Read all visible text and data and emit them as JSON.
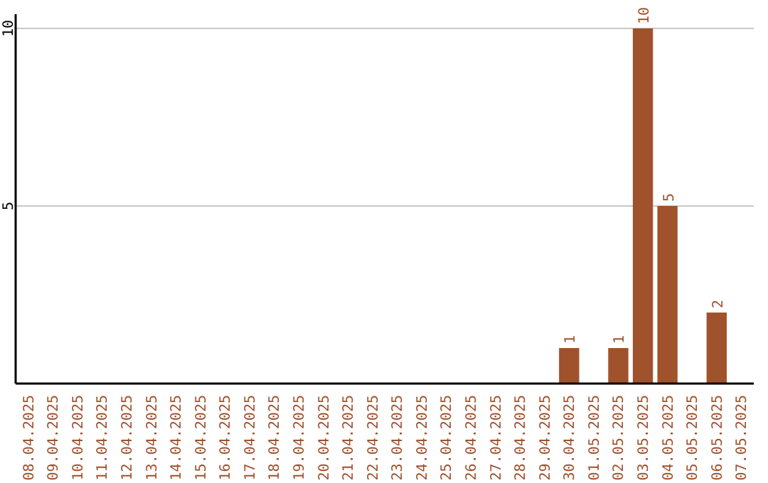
{
  "chart_data": {
    "type": "bar",
    "categories": [
      "08.04.2025",
      "09.04.2025",
      "10.04.2025",
      "11.04.2025",
      "12.04.2025",
      "13.04.2025",
      "14.04.2025",
      "15.04.2025",
      "16.04.2025",
      "17.04.2025",
      "18.04.2025",
      "19.04.2025",
      "20.04.2025",
      "21.04.2025",
      "22.04.2025",
      "23.04.2025",
      "24.04.2025",
      "25.04.2025",
      "26.04.2025",
      "27.04.2025",
      "28.04.2025",
      "29.04.2025",
      "30.04.2025",
      "01.05.2025",
      "02.05.2025",
      "03.05.2025",
      "04.05.2025",
      "05.05.2025",
      "06.05.2025",
      "07.05.2025"
    ],
    "values": [
      0,
      0,
      0,
      0,
      0,
      0,
      0,
      0,
      0,
      0,
      0,
      0,
      0,
      0,
      0,
      0,
      0,
      0,
      0,
      0,
      0,
      0,
      1,
      0,
      1,
      10,
      5,
      0,
      2,
      0
    ],
    "value_labels": [
      null,
      null,
      null,
      null,
      null,
      null,
      null,
      null,
      null,
      null,
      null,
      null,
      null,
      null,
      null,
      null,
      null,
      null,
      null,
      null,
      null,
      null,
      "1",
      null,
      "1",
      "10",
      "5",
      null,
      "2",
      null
    ],
    "color": "#a0522d",
    "ylim": [
      0,
      10.4
    ],
    "yticks": [
      5,
      10
    ],
    "grid": "y"
  }
}
